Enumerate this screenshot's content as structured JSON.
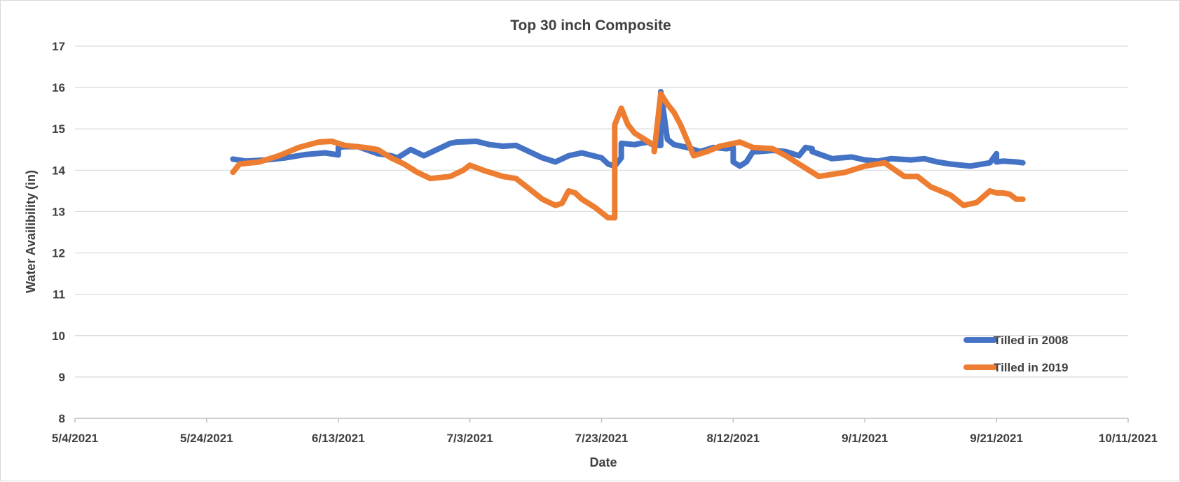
{
  "chart_data": {
    "type": "line",
    "title": "Top 30 inch Composite",
    "xlabel": "Date",
    "ylabel": "Water Availibility  (in)",
    "ylim": [
      8,
      17
    ],
    "xlim": [
      "5/4/2021",
      "10/11/2021"
    ],
    "y_ticks": [
      "8",
      "9",
      "10",
      "11",
      "12",
      "13",
      "14",
      "15",
      "16",
      "17"
    ],
    "x_ticks": [
      "5/4/2021",
      "5/24/2021",
      "6/13/2021",
      "7/3/2021",
      "7/23/2021",
      "8/12/2021",
      "9/1/2021",
      "9/21/2021",
      "10/11/2021"
    ],
    "grid": "horizontal",
    "legend_position": "bottom-right",
    "series": [
      {
        "name": "Tilled in 2008",
        "color": "#4472C4",
        "x": [
          "5/28/2021",
          "5/30/2021",
          "6/2/2021",
          "6/5/2021",
          "6/8/2021",
          "6/11/2021",
          "6/13/2021",
          "6/13/2021",
          "6/14/2021",
          "6/16/2021",
          "6/19/2021",
          "6/21/2021",
          "6/22/2021",
          "6/24/2021",
          "6/26/2021",
          "6/28/2021",
          "6/30/2021",
          "7/1/2021",
          "7/4/2021",
          "7/6/2021",
          "7/8/2021",
          "7/10/2021",
          "7/12/2021",
          "7/14/2021",
          "7/16/2021",
          "7/18/2021",
          "7/20/2021",
          "7/23/2021",
          "7/24/2021",
          "7/25/2021",
          "7/26/2021",
          "7/26/2021",
          "7/28/2021",
          "7/30/2021",
          "7/31/2021",
          "8/1/2021",
          "8/1/2021",
          "8/2/2021",
          "8/3/2021",
          "8/5/2021",
          "8/7/2021",
          "8/9/2021",
          "8/11/2021",
          "8/12/2021",
          "8/12/2021",
          "8/13/2021",
          "8/14/2021",
          "8/15/2021",
          "8/16/2021",
          "8/18/2021",
          "8/20/2021",
          "8/22/2021",
          "8/23/2021",
          "8/24/2021",
          "8/24/2021",
          "8/27/2021",
          "8/30/2021",
          "9/1/2021",
          "9/3/2021",
          "9/5/2021",
          "9/8/2021",
          "9/10/2021",
          "9/12/2021",
          "9/14/2021",
          "9/17/2021",
          "9/20/2021",
          "9/21/2021",
          "9/21/2021",
          "9/22/2021",
          "9/24/2021",
          "9/25/2021"
        ],
        "values": [
          14.27,
          14.22,
          14.25,
          14.3,
          14.38,
          14.42,
          14.37,
          14.55,
          14.57,
          14.57,
          14.4,
          14.35,
          14.3,
          14.5,
          14.35,
          14.5,
          14.65,
          14.68,
          14.7,
          14.62,
          14.58,
          14.6,
          14.45,
          14.3,
          14.2,
          14.35,
          14.42,
          14.3,
          14.15,
          14.1,
          14.3,
          14.65,
          14.62,
          14.68,
          14.6,
          14.6,
          15.9,
          14.75,
          14.62,
          14.55,
          14.45,
          14.55,
          14.52,
          14.55,
          14.2,
          14.1,
          14.2,
          14.45,
          14.45,
          14.48,
          14.45,
          14.35,
          14.55,
          14.52,
          14.45,
          14.28,
          14.32,
          14.25,
          14.22,
          14.28,
          14.25,
          14.28,
          14.2,
          14.15,
          14.1,
          14.18,
          14.4,
          14.2,
          14.22,
          14.2,
          14.18
        ]
      },
      {
        "name": "Tilled in 2019",
        "color": "#ED7D31",
        "x": [
          "5/28/2021",
          "5/29/2021",
          "6/1/2021",
          "6/4/2021",
          "6/7/2021",
          "6/10/2021",
          "6/12/2021",
          "6/14/2021",
          "6/17/2021",
          "6/19/2021",
          "6/21/2021",
          "6/23/2021",
          "6/25/2021",
          "6/27/2021",
          "6/30/2021",
          "7/2/2021",
          "7/3/2021",
          "7/5/2021",
          "7/8/2021",
          "7/10/2021",
          "7/12/2021",
          "7/14/2021",
          "7/16/2021",
          "7/17/2021",
          "7/18/2021",
          "7/19/2021",
          "7/20/2021",
          "7/22/2021",
          "7/24/2021",
          "7/25/2021",
          "7/25/2021",
          "7/26/2021",
          "7/27/2021",
          "7/28/2021",
          "7/30/2021",
          "7/31/2021",
          "7/31/2021",
          "8/1/2021",
          "8/2/2021",
          "8/3/2021",
          "8/4/2021",
          "8/6/2021",
          "8/8/2021",
          "8/10/2021",
          "8/13/2021",
          "8/15/2021",
          "8/18/2021",
          "8/20/2021",
          "8/22/2021",
          "8/25/2021",
          "8/29/2021",
          "9/1/2021",
          "9/4/2021",
          "9/7/2021",
          "9/9/2021",
          "9/11/2021",
          "9/14/2021",
          "9/16/2021",
          "9/18/2021",
          "9/20/2021",
          "9/21/2021",
          "9/21/2021",
          "9/22/2021",
          "9/23/2021",
          "9/24/2021",
          "9/25/2021"
        ],
        "values": [
          13.95,
          14.15,
          14.2,
          14.35,
          14.55,
          14.68,
          14.7,
          14.6,
          14.55,
          14.5,
          14.3,
          14.15,
          13.95,
          13.8,
          13.85,
          14.0,
          14.12,
          14.0,
          13.85,
          13.8,
          13.55,
          13.3,
          13.15,
          13.2,
          13.5,
          13.45,
          13.3,
          13.1,
          12.85,
          12.85,
          15.1,
          15.5,
          15.1,
          14.9,
          14.7,
          14.6,
          14.45,
          15.85,
          15.6,
          15.4,
          15.1,
          14.35,
          14.45,
          14.58,
          14.68,
          14.55,
          14.52,
          14.35,
          14.15,
          13.85,
          13.95,
          14.1,
          14.18,
          13.85,
          13.85,
          13.6,
          13.4,
          13.15,
          13.22,
          13.5,
          13.45,
          13.45,
          13.45,
          13.42,
          13.3,
          13.3
        ]
      }
    ]
  }
}
